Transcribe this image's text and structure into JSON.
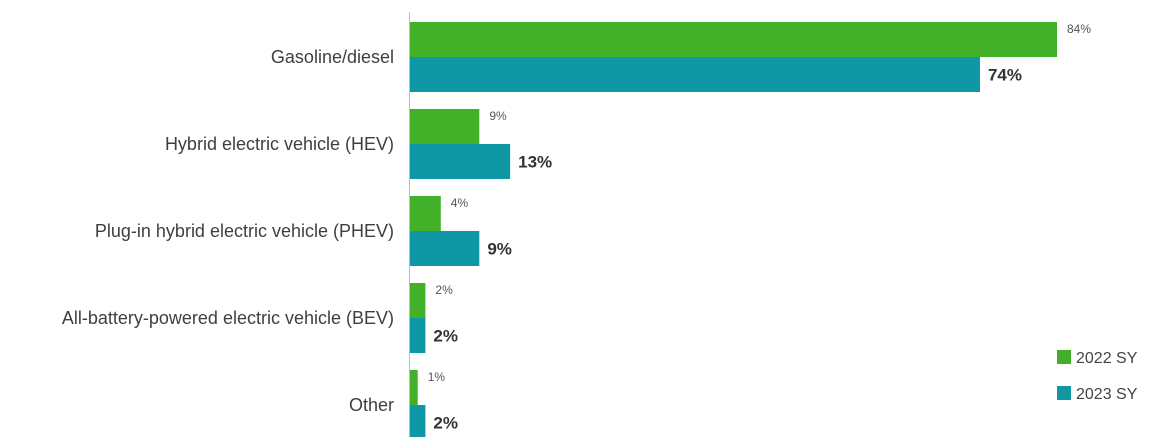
{
  "chart_data": {
    "type": "bar",
    "orientation": "horizontal",
    "categories": [
      "Gasoline/diesel",
      "Hybrid electric vehicle (HEV)",
      "Plug-in hybrid electric vehicle (PHEV)",
      "All-battery-powered electric vehicle (BEV)",
      "Other"
    ],
    "series": [
      {
        "name": "2022 SY",
        "color": "#43b02a",
        "values": [
          84,
          9,
          4,
          2,
          1
        ],
        "labels": [
          "84%",
          "9%",
          "4%",
          "2%",
          "1%"
        ]
      },
      {
        "name": "2023 SY",
        "color": "#0f97a6",
        "values": [
          74,
          13,
          9,
          2,
          2
        ],
        "labels": [
          "74%",
          "13%",
          "9%",
          "2%",
          "2%"
        ]
      }
    ],
    "xlim": [
      0,
      84
    ],
    "grid": false,
    "legend_position": "bottom-right"
  }
}
